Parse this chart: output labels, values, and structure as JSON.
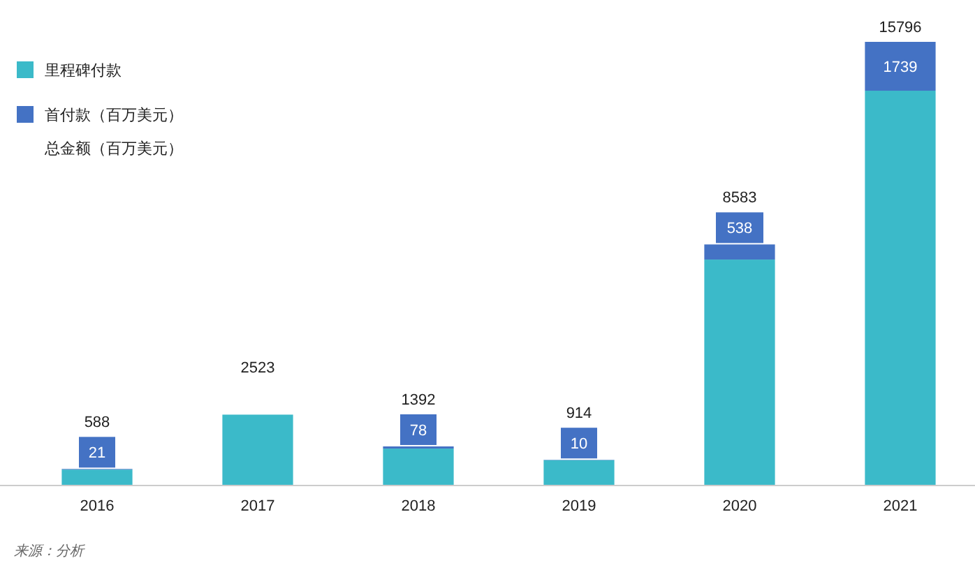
{
  "chart_data": {
    "type": "bar",
    "stacked": true,
    "categories": [
      "2016",
      "2017",
      "2018",
      "2019",
      "2020",
      "2021"
    ],
    "series": [
      {
        "name": "里程碑付款",
        "color": "#3bbac9",
        "values": [
          567,
          2523,
          1314,
          904,
          8045,
          14057
        ]
      },
      {
        "name": "首付款（百万美元）",
        "color": "#4472c4",
        "values": [
          21,
          0,
          78,
          10,
          538,
          1739
        ],
        "value_labels": [
          "21",
          null,
          "78",
          "10",
          "538",
          "1739"
        ]
      }
    ],
    "totals": [
      "588",
      "2523",
      "1392",
      "914",
      "8583",
      "15796"
    ],
    "legend": "top left",
    "annotations": [
      "总金额（百万美元）",
      "来源：分析"
    ]
  }
}
